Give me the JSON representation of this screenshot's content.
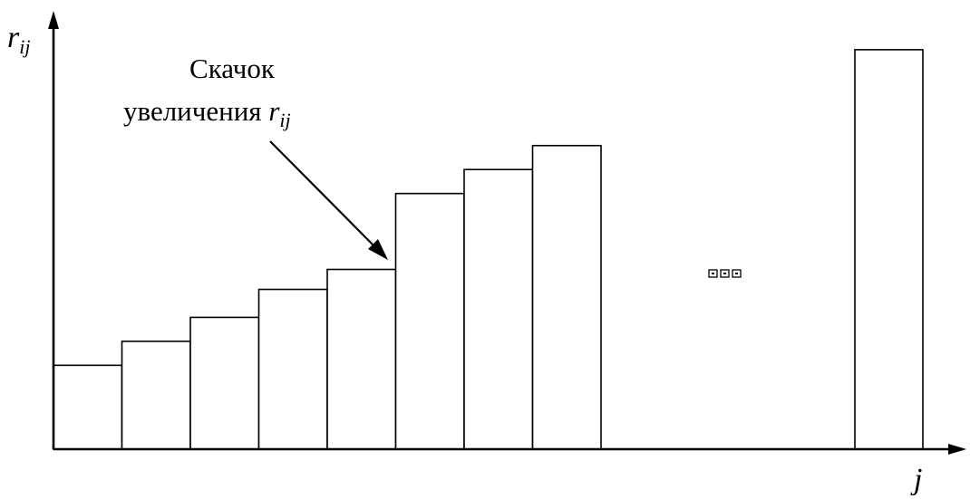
{
  "chart_data": {
    "type": "bar",
    "bars_before_gap": [
      0.21,
      0.27,
      0.33,
      0.4,
      0.45,
      0.64,
      0.7,
      0.76
    ],
    "last_bar": 1.0,
    "y_max": 1.07,
    "ellipsis": "▫▫▫",
    "y_axis_label": {
      "main": "r",
      "sub": "ij"
    },
    "x_axis_label": "j",
    "annotation": {
      "line1": "Скачок",
      "line2": "увеличения ",
      "symbol_main": "r",
      "symbol_sub": "ij",
      "points_to_bar": 5
    },
    "colors": {
      "bar_fill": "#ffffff",
      "stroke": "#000000"
    }
  }
}
